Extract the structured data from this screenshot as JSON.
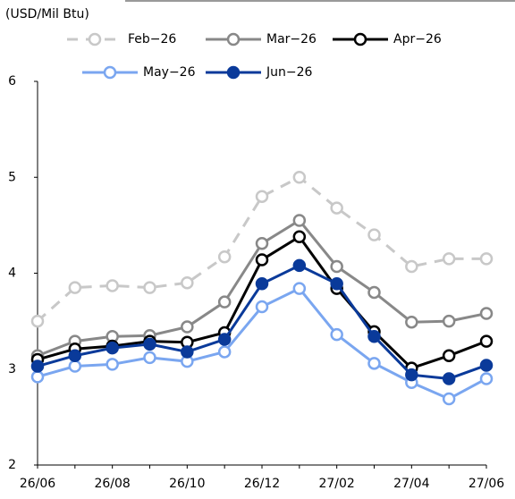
{
  "chart_data": {
    "type": "line",
    "title": "(USD/Mil Btu)",
    "categories": [
      "26/06",
      null,
      "26/08",
      null,
      "26/10",
      null,
      "26/12",
      null,
      "27/02",
      null,
      "27/04",
      null,
      "27/06"
    ],
    "ylim": [
      2,
      6
    ],
    "yticks": [
      2,
      3,
      4,
      5,
      6
    ],
    "series": [
      {
        "name": "Feb−26",
        "color": "#c8c8c8",
        "dashed": true,
        "filled": false,
        "values": [
          3.5,
          3.85,
          3.87,
          3.85,
          3.9,
          4.17,
          4.8,
          5.0,
          4.68,
          4.4,
          4.07,
          4.15,
          4.15
        ]
      },
      {
        "name": "Mar−26",
        "color": "#888888",
        "dashed": false,
        "filled": false,
        "values": [
          3.14,
          3.29,
          3.34,
          3.35,
          3.44,
          3.7,
          4.31,
          4.55,
          4.07,
          3.8,
          3.49,
          3.5,
          3.58
        ]
      },
      {
        "name": "Apr−26",
        "color": "#000000",
        "dashed": false,
        "filled": false,
        "values": [
          3.1,
          3.21,
          3.24,
          3.29,
          3.28,
          3.38,
          4.14,
          4.38,
          3.84,
          3.39,
          3.01,
          3.14,
          3.29
        ]
      },
      {
        "name": "May−26",
        "color": "#7aa6f0",
        "dashed": false,
        "filled": false,
        "values": [
          2.92,
          3.03,
          3.05,
          3.12,
          3.08,
          3.18,
          3.65,
          3.84,
          3.36,
          3.06,
          2.86,
          2.69,
          2.9
        ]
      },
      {
        "name": "Jun−26",
        "color": "#0a3a9a",
        "dashed": false,
        "filled": true,
        "values": [
          3.03,
          3.14,
          3.22,
          3.26,
          3.18,
          3.31,
          3.89,
          4.08,
          3.89,
          3.34,
          2.94,
          2.9,
          3.04
        ]
      }
    ]
  }
}
